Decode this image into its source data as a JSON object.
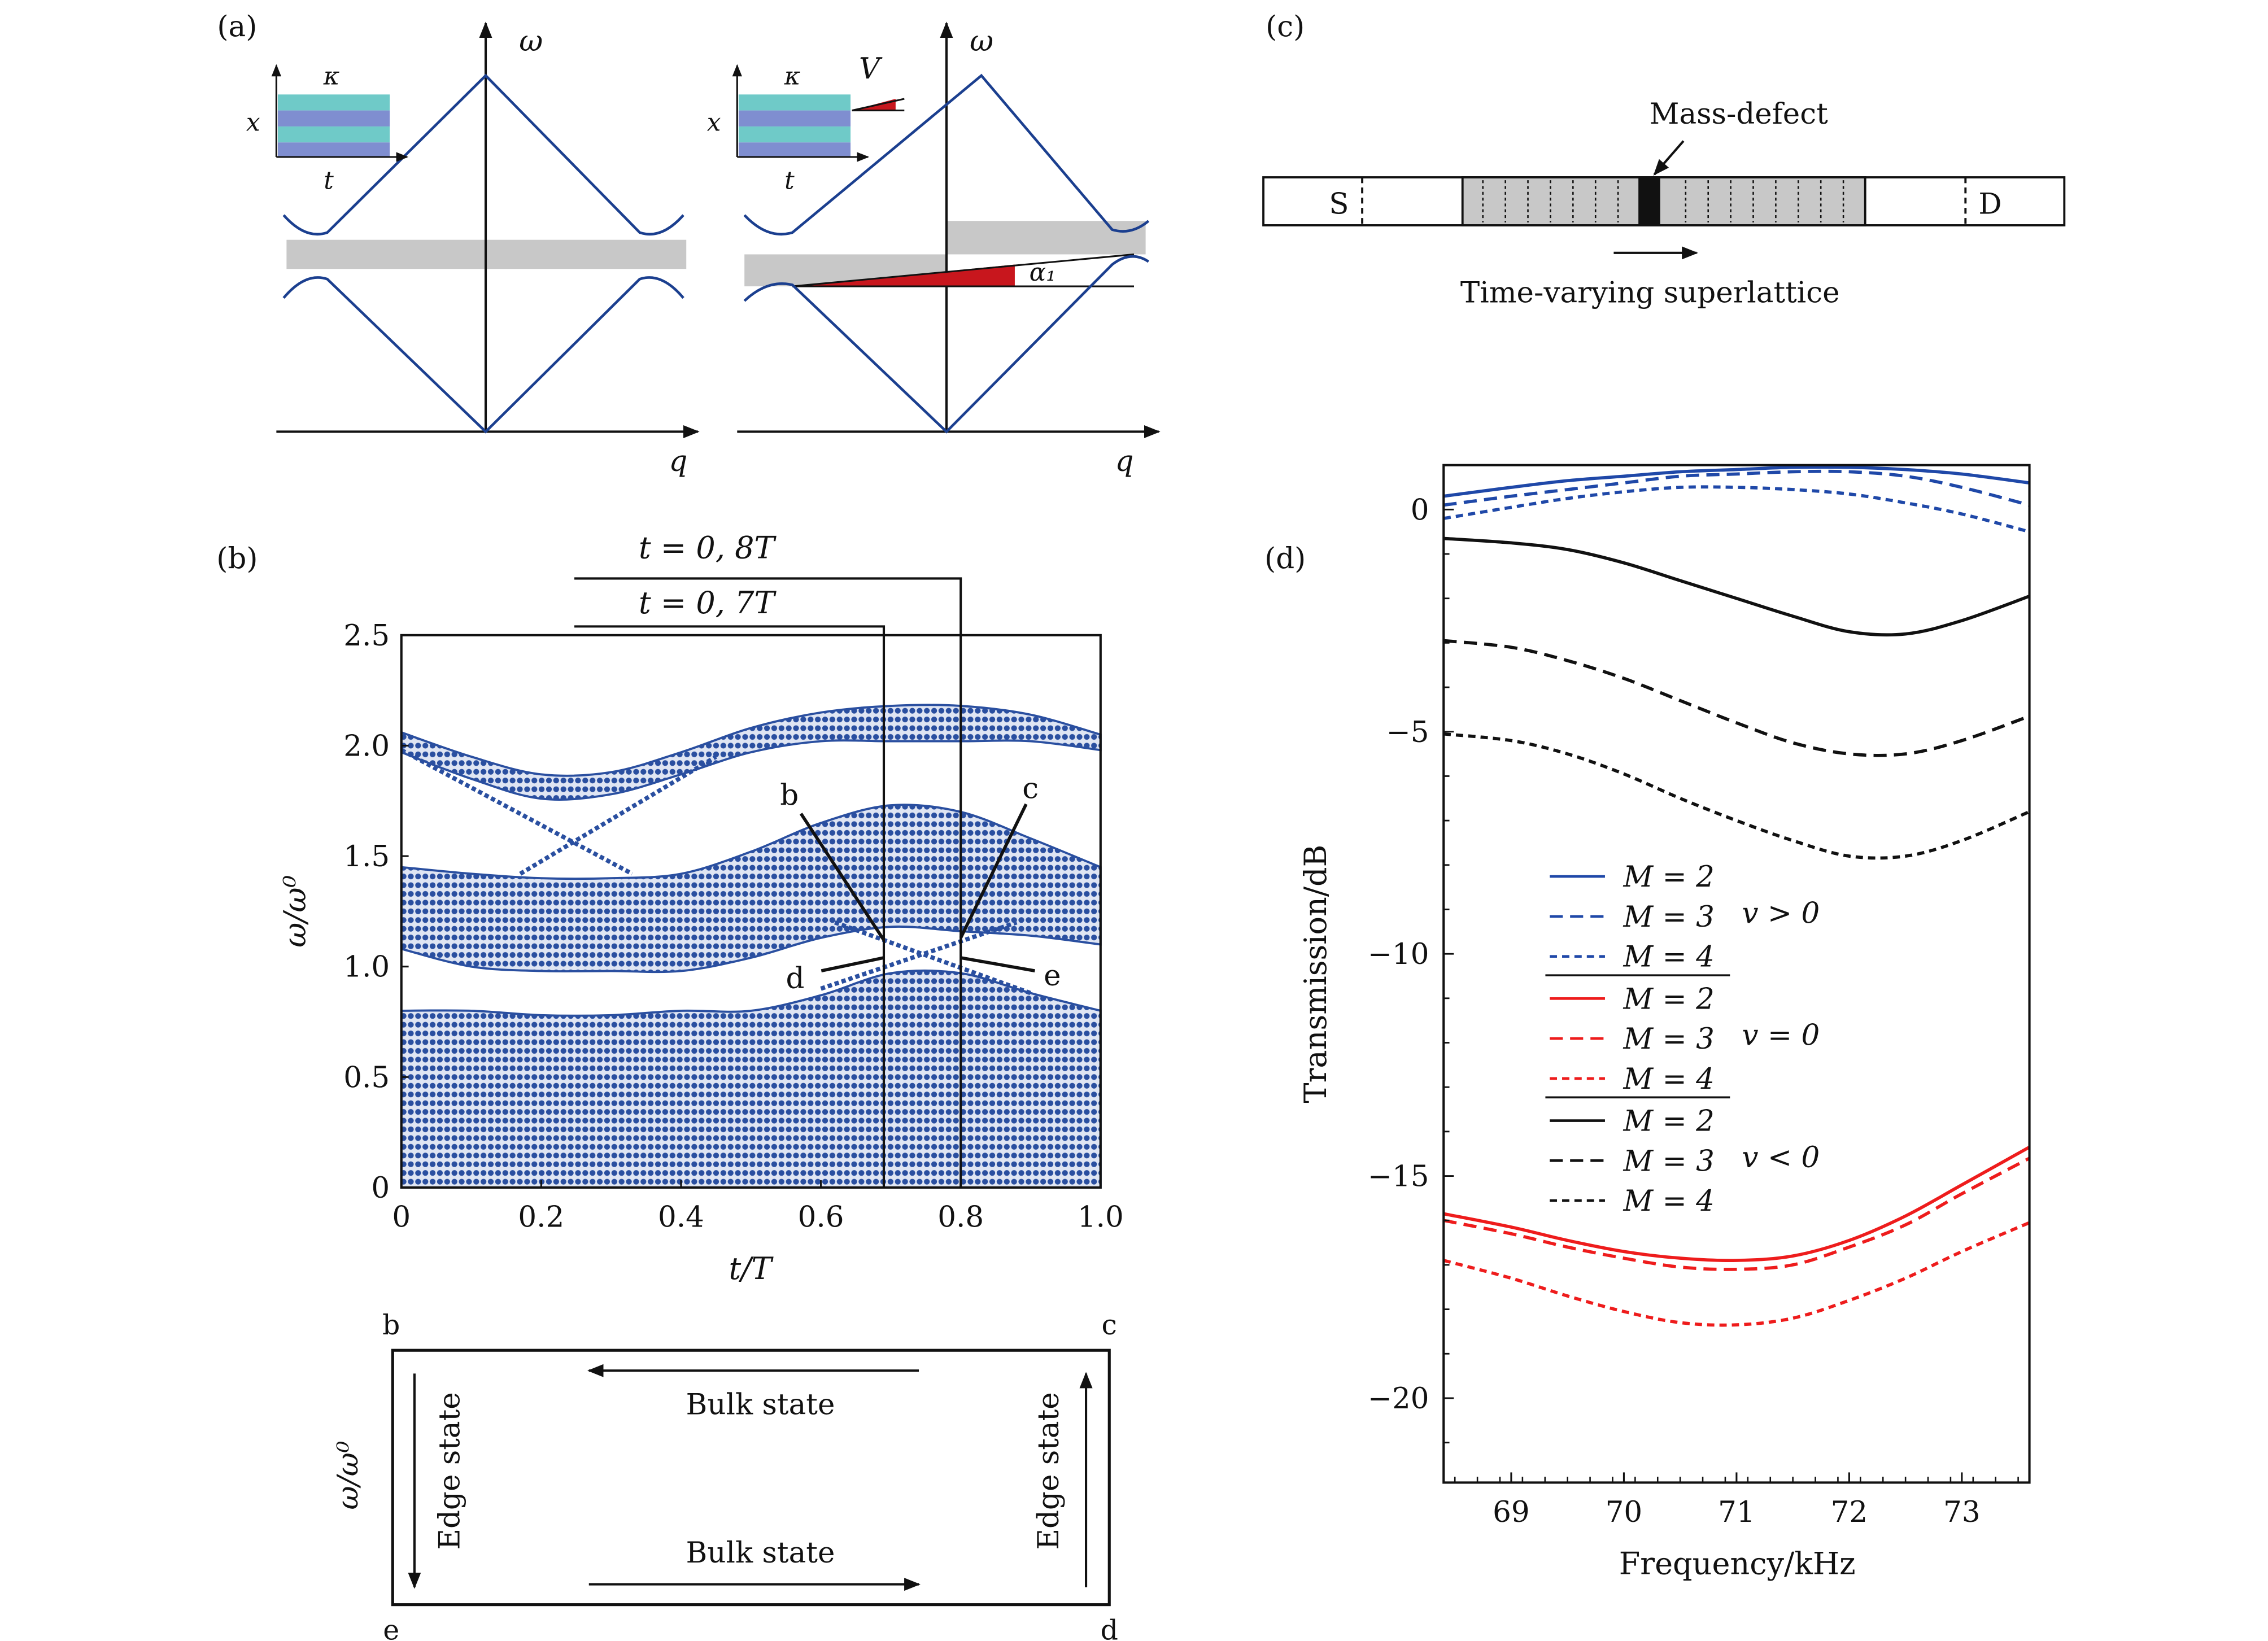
{
  "colors": {
    "blue": "#1f48a8",
    "red": "#ee1c1c",
    "black": "#111111",
    "gray": "#c8c8c8",
    "band": "#2a4fa0"
  },
  "panel_a": {
    "label": "(a)",
    "left": {
      "kappa": "κ",
      "x": "x",
      "t": "t",
      "omega": "ω",
      "q": "q"
    },
    "right": {
      "kappa": "κ",
      "x": "x",
      "t": "t",
      "omega": "ω",
      "q": "q",
      "V": "V",
      "alpha": "α₁"
    }
  },
  "panel_c": {
    "label": "(c)",
    "source": "S",
    "drain": "D",
    "mass_defect": "Mass-defect",
    "superlattice": "Time-varying superlattice"
  },
  "panel_b_bottom": {
    "corner_b": "b",
    "corner_c": "c",
    "corner_d": "d",
    "corner_e": "e",
    "bulk_top": "Bulk state",
    "bulk_bottom": "Bulk state",
    "edge_left": "Edge state",
    "edge_right": "Edge state",
    "ylabel": "ω/ω⁰"
  },
  "chart_data": [
    {
      "panel": "(b)",
      "type": "scatter",
      "xlabel": "t/T",
      "ylabel": "ω/ω⁰",
      "xlim": [
        0,
        1.0
      ],
      "ylim": [
        0,
        2.5
      ],
      "xticks": [
        "0",
        "0.2",
        "0.4",
        "0.6",
        "0.8",
        "1.0"
      ],
      "yticks": [
        "0",
        "0.5",
        "1.0",
        "1.5",
        "2.0",
        "2.5"
      ],
      "t": [
        0,
        0.1,
        0.2,
        0.3,
        0.4,
        0.5,
        0.6,
        0.7,
        0.8,
        0.9,
        1.0
      ],
      "bands": [
        {
          "lower": [
            0,
            0,
            0,
            0,
            0,
            0,
            0,
            0,
            0,
            0,
            0
          ],
          "upper": [
            0.8,
            0.8,
            0.78,
            0.78,
            0.8,
            0.8,
            0.87,
            0.97,
            0.97,
            0.88,
            0.8
          ]
        },
        {
          "lower": [
            1.08,
            1.0,
            0.98,
            0.98,
            0.98,
            1.04,
            1.13,
            1.18,
            1.16,
            1.14,
            1.1
          ],
          "upper": [
            1.45,
            1.42,
            1.4,
            1.4,
            1.42,
            1.52,
            1.65,
            1.73,
            1.7,
            1.58,
            1.45
          ]
        },
        {
          "lower": [
            1.97,
            1.85,
            1.76,
            1.78,
            1.87,
            1.97,
            2.02,
            2.02,
            2.02,
            2.02,
            1.98
          ],
          "upper": [
            2.06,
            1.95,
            1.87,
            1.88,
            1.97,
            2.08,
            2.15,
            2.18,
            2.18,
            2.14,
            2.05
          ]
        }
      ],
      "edge_states": [
        [
          [
            0,
            1.98
          ],
          [
            0.33,
            1.42
          ]
        ],
        [
          [
            0.17,
            1.42
          ],
          [
            0.45,
            1.95
          ]
        ],
        [
          [
            0.6,
            0.9
          ],
          [
            0.88,
            1.2
          ]
        ],
        [
          [
            0.62,
            1.2
          ],
          [
            0.9,
            0.88
          ]
        ]
      ],
      "markers": [
        {
          "label": "t = 0, 7T",
          "t": 0.69
        },
        {
          "label": "t = 0, 8T",
          "t": 0.8
        }
      ],
      "points": [
        {
          "label": "b",
          "t": 0.69,
          "w": 1.12
        },
        {
          "label": "c",
          "t": 0.8,
          "w": 1.13
        },
        {
          "label": "d",
          "t": 0.69,
          "w": 1.04
        },
        {
          "label": "e",
          "t": 0.8,
          "w": 1.04
        }
      ]
    },
    {
      "panel": "(d)",
      "type": "line",
      "xlabel": "Frequency/kHz",
      "ylabel": "Transmission/dB",
      "xlim": [
        68.4,
        73.6
      ],
      "ylim": [
        -21.9,
        1.0
      ],
      "xticks": [
        "69",
        "70",
        "71",
        "72",
        "73"
      ],
      "yticks": [
        "0",
        "−5",
        "−10",
        "−15",
        "−20"
      ],
      "ytick_values": [
        0,
        -5,
        -10,
        -15,
        -20
      ],
      "xtick_values": [
        69,
        70,
        71,
        72,
        73
      ],
      "x": [
        68.4,
        69,
        69.5,
        70,
        70.5,
        71,
        71.5,
        72,
        72.5,
        73,
        73.6
      ],
      "groups": [
        {
          "condition": "v > 0",
          "color": "#1f48a8"
        },
        {
          "condition": "v = 0",
          "color": "#ee1c1c"
        },
        {
          "condition": "v < 0",
          "color": "#111111"
        }
      ],
      "series": [
        {
          "name": "M = 2",
          "group": 0,
          "style": "solid",
          "values": [
            0.3,
            0.5,
            0.65,
            0.75,
            0.85,
            0.9,
            0.95,
            0.95,
            0.9,
            0.8,
            0.6
          ]
        },
        {
          "name": "M = 3",
          "group": 0,
          "style": "dashed",
          "values": [
            0.1,
            0.3,
            0.45,
            0.6,
            0.75,
            0.8,
            0.85,
            0.85,
            0.75,
            0.5,
            0.1
          ]
        },
        {
          "name": "M = 4",
          "group": 0,
          "style": "dotted",
          "values": [
            -0.2,
            0.05,
            0.25,
            0.4,
            0.5,
            0.5,
            0.45,
            0.35,
            0.15,
            -0.1,
            -0.5
          ]
        },
        {
          "name": "M = 2",
          "group": 1,
          "style": "solid",
          "values": [
            -15.85,
            -16.15,
            -16.45,
            -16.7,
            -16.85,
            -16.9,
            -16.8,
            -16.45,
            -15.9,
            -15.2,
            -14.35
          ]
        },
        {
          "name": "M = 3",
          "group": 1,
          "style": "dashed",
          "values": [
            -16.0,
            -16.3,
            -16.6,
            -16.85,
            -17.05,
            -17.1,
            -17.0,
            -16.6,
            -16.1,
            -15.4,
            -14.6
          ]
        },
        {
          "name": "M = 4",
          "group": 1,
          "style": "dotted",
          "values": [
            -16.9,
            -17.3,
            -17.7,
            -18.05,
            -18.3,
            -18.35,
            -18.2,
            -17.8,
            -17.3,
            -16.7,
            -16.05
          ]
        },
        {
          "name": "M = 2",
          "group": 2,
          "style": "solid",
          "values": [
            -0.65,
            -0.75,
            -0.9,
            -1.2,
            -1.6,
            -2.0,
            -2.4,
            -2.75,
            -2.8,
            -2.5,
            -1.95
          ]
        },
        {
          "name": "M = 3",
          "group": 2,
          "style": "dashed",
          "values": [
            -2.95,
            -3.1,
            -3.4,
            -3.8,
            -4.3,
            -4.8,
            -5.25,
            -5.5,
            -5.5,
            -5.2,
            -4.65
          ]
        },
        {
          "name": "M = 4",
          "group": 2,
          "style": "dotted",
          "values": [
            -5.05,
            -5.2,
            -5.5,
            -5.95,
            -6.5,
            -7.0,
            -7.45,
            -7.8,
            -7.8,
            -7.45,
            -6.8
          ]
        }
      ],
      "legend_placement": "center-left"
    }
  ]
}
